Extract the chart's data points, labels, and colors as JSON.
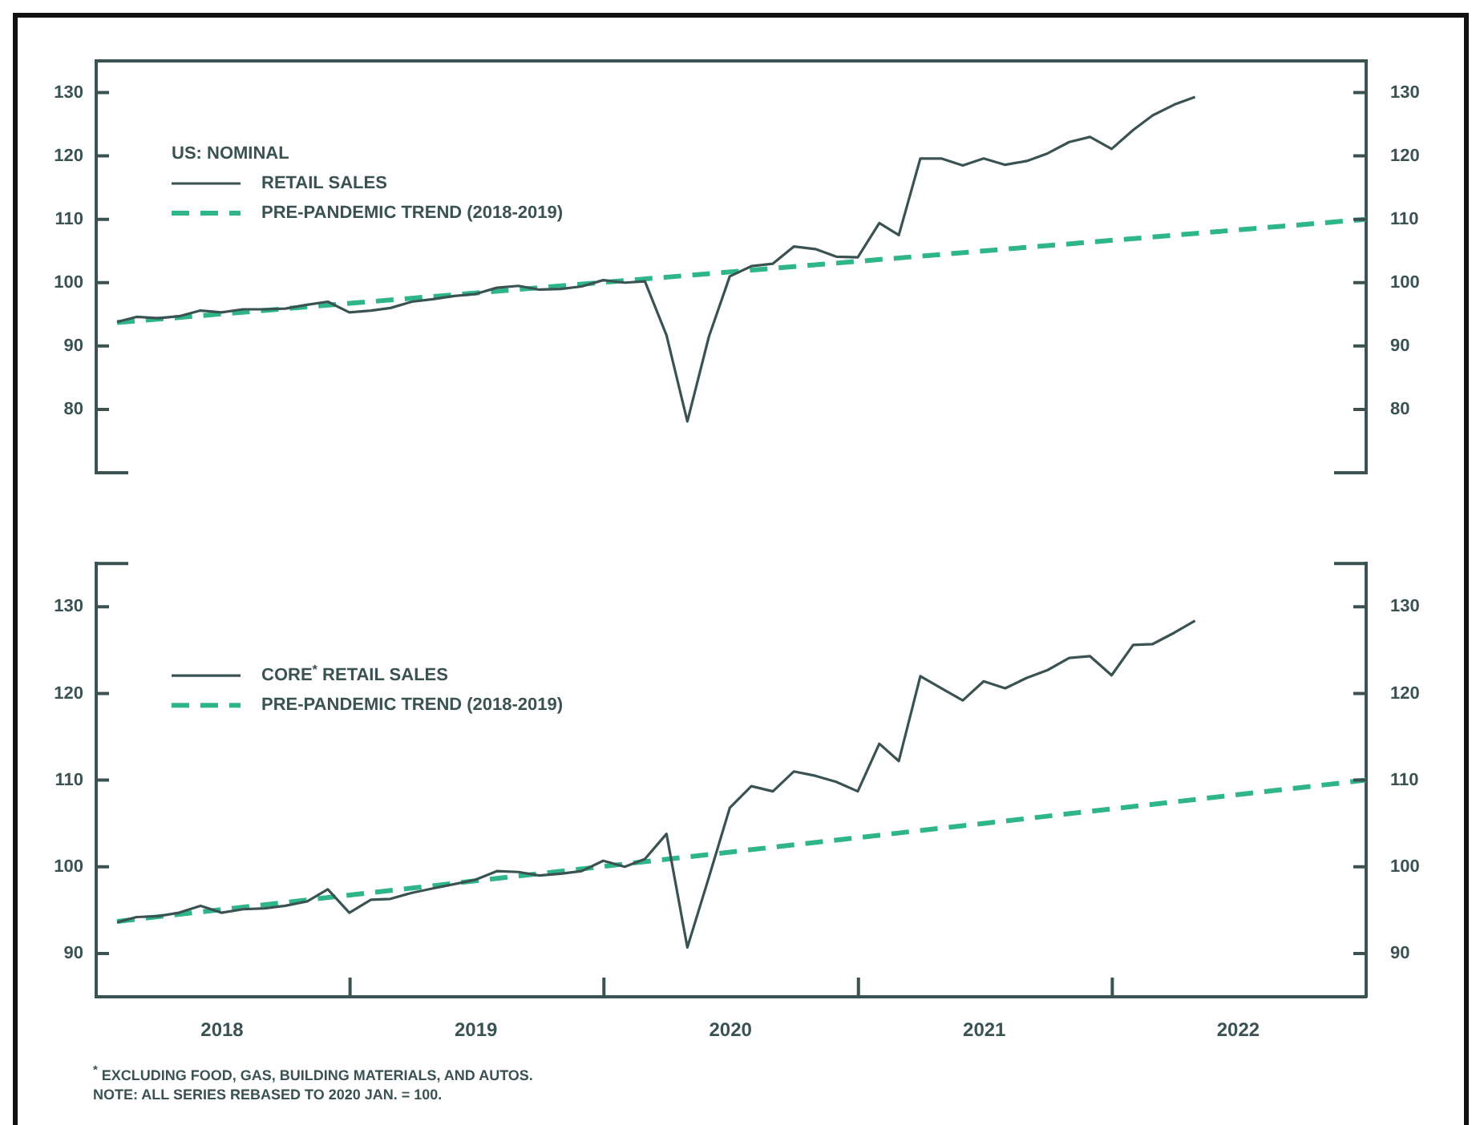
{
  "chart_data": [
    {
      "type": "line",
      "legend_title": "US: NOMINAL",
      "x": [
        "2018-01-31",
        "2018-02-28",
        "2018-03-31",
        "2018-04-30",
        "2018-05-31",
        "2018-06-30",
        "2018-07-31",
        "2018-08-31",
        "2018-09-30",
        "2018-10-31",
        "2018-11-30",
        "2018-12-31",
        "2019-01-31",
        "2019-02-28",
        "2019-03-31",
        "2019-04-30",
        "2019-05-31",
        "2019-06-30",
        "2019-07-31",
        "2019-08-31",
        "2019-09-30",
        "2019-10-31",
        "2019-11-30",
        "2019-12-31",
        "2020-01-31",
        "2020-02-29",
        "2020-03-31",
        "2020-04-30",
        "2020-05-31",
        "2020-06-30",
        "2020-07-31",
        "2020-08-31",
        "2020-09-30",
        "2020-10-31",
        "2020-11-30",
        "2020-12-31",
        "2021-01-31",
        "2021-02-28",
        "2021-03-31",
        "2021-04-30",
        "2021-05-31",
        "2021-06-30",
        "2021-07-31",
        "2021-08-31",
        "2021-09-30",
        "2021-10-31",
        "2021-11-30",
        "2021-12-31",
        "2022-01-31",
        "2022-02-28",
        "2022-03-31",
        "2022-04-30"
      ],
      "series": [
        {
          "name": "RETAIL SALES",
          "color": "#3b5253",
          "line_style": "solid",
          "values": [
            93.8,
            94.6,
            94.4,
            94.7,
            95.6,
            95.3,
            95.8,
            95.8,
            95.9,
            96.5,
            97.0,
            95.3,
            95.6,
            96.0,
            97.0,
            97.4,
            97.9,
            98.2,
            99.2,
            99.5,
            98.9,
            99.0,
            99.4,
            100.4,
            100.0,
            100.2,
            91.7,
            78.1,
            91.5,
            101.0,
            102.6,
            103.0,
            105.7,
            105.3,
            104.1,
            104.0,
            109.4,
            107.5,
            119.6,
            119.6,
            118.5,
            119.6,
            118.6,
            119.2,
            120.4,
            122.2,
            123.0,
            121.1,
            124.1,
            126.4,
            128.1,
            129.3
          ]
        },
        {
          "name": "PRE-PANDEMIC TREND (2018-2019)",
          "color": "#2fb58a",
          "line_style": "dashed",
          "type": "line",
          "x": [
            "2018-01-31",
            "2023-01-01"
          ],
          "values": [
            93.7,
            110
          ]
        }
      ],
      "xlim": [
        "2018-01-01",
        "2023-01-01"
      ],
      "ylim": [
        70,
        135
      ],
      "yticks": [
        80,
        90,
        100,
        110,
        120,
        130
      ],
      "y2lim": [
        70,
        135
      ],
      "y2ticks": [
        80,
        90,
        100,
        110,
        120,
        130
      ],
      "tick_labels": "y",
      "legend": "top left",
      "marker": "none"
    },
    {
      "type": "line",
      "x": [
        "2018-01-31",
        "2018-02-28",
        "2018-03-31",
        "2018-04-30",
        "2018-05-31",
        "2018-06-30",
        "2018-07-31",
        "2018-08-31",
        "2018-09-30",
        "2018-10-31",
        "2018-11-30",
        "2018-12-31",
        "2019-01-31",
        "2019-02-28",
        "2019-03-31",
        "2019-04-30",
        "2019-05-31",
        "2019-06-30",
        "2019-07-31",
        "2019-08-31",
        "2019-09-30",
        "2019-10-31",
        "2019-11-30",
        "2019-12-31",
        "2020-01-31",
        "2020-02-29",
        "2020-03-31",
        "2020-04-30",
        "2020-05-31",
        "2020-06-30",
        "2020-07-31",
        "2020-08-31",
        "2020-09-30",
        "2020-10-31",
        "2020-11-30",
        "2020-12-31",
        "2021-01-31",
        "2021-02-28",
        "2021-03-31",
        "2021-04-30",
        "2021-05-31",
        "2021-06-30",
        "2021-07-31",
        "2021-08-31",
        "2021-09-30",
        "2021-10-31",
        "2021-11-30",
        "2021-12-31",
        "2022-01-31",
        "2022-02-28",
        "2022-03-31",
        "2022-04-30"
      ],
      "series": [
        {
          "name": "CORE$^{*}$ RETAIL SALES",
          "color": "#3b5253",
          "line_style": "solid",
          "values": [
            93.6,
            94.2,
            94.3,
            94.7,
            95.5,
            94.7,
            95.1,
            95.2,
            95.5,
            96.0,
            97.4,
            94.7,
            96.2,
            96.3,
            97.0,
            97.5,
            98.0,
            98.5,
            99.5,
            99.4,
            99.0,
            99.2,
            99.5,
            100.7,
            100.0,
            100.9,
            103.8,
            90.7,
            98.8,
            106.8,
            109.3,
            108.7,
            111.0,
            110.5,
            109.8,
            108.7,
            114.2,
            112.2,
            122.0,
            120.6,
            119.2,
            121.4,
            120.6,
            121.8,
            122.7,
            124.1,
            124.3,
            122.1,
            125.6,
            125.7,
            127.0,
            128.4
          ]
        },
        {
          "name": "PRE-PANDEMIC TREND (2018-2019)",
          "color": "#2fb58a",
          "line_style": "dashed",
          "type": "line",
          "x": [
            "2018-01-31",
            "2023-01-01"
          ],
          "values": [
            93.7,
            110
          ]
        }
      ],
      "xlim": [
        "2018-01-01",
        "2023-01-01"
      ],
      "xticks": [
        {
          "value": "2018-07-01",
          "label": "2018"
        },
        {
          "value": "2019-01-01",
          "label": null
        },
        {
          "value": "2019-07-01",
          "label": "2019"
        },
        {
          "value": "2020-01-01",
          "label": null
        },
        {
          "value": "2020-07-01",
          "label": "2020"
        },
        {
          "value": "2021-01-01",
          "label": null
        },
        {
          "value": "2021-07-01",
          "label": "2021"
        },
        {
          "value": "2022-01-01",
          "label": null
        },
        {
          "value": "2022-07-01",
          "label": "2022"
        }
      ],
      "ylim": [
        85,
        135
      ],
      "yticks": [
        90,
        100,
        110,
        120,
        130
      ],
      "y2lim": [
        85,
        135
      ],
      "y2ticks": [
        90,
        100,
        110,
        120,
        130
      ],
      "legend": "top left",
      "marker": "none",
      "annotations": [
        "$^{*}$ EXCLUDING FOOD, GAS, BUILDING MATERIALS, AND AUTOS.",
        "NOTE: ALL SERIES REBASED TO 2020 JAN. = 100."
      ]
    }
  ]
}
